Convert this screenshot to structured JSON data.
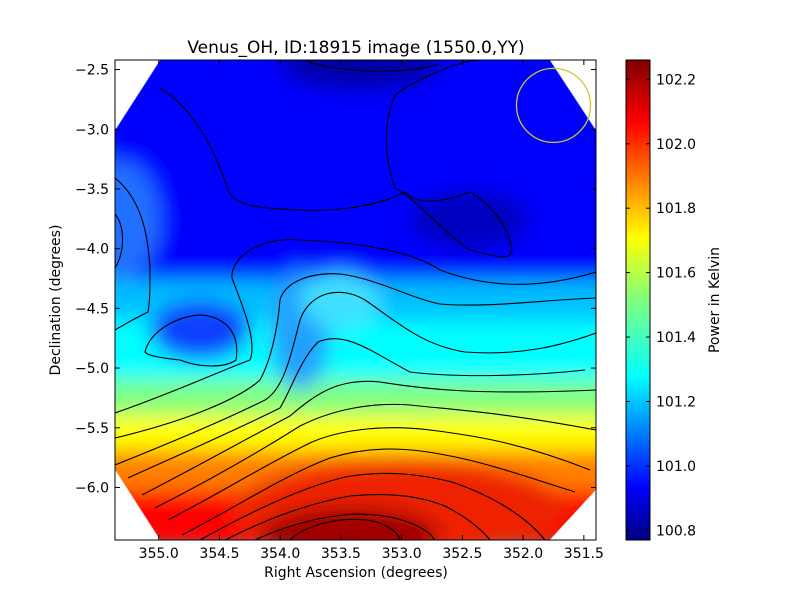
{
  "chart_data": {
    "type": "heatmap",
    "title": "Venus_OH, ID:18915 image (1550.0,YY)",
    "xlabel": "Right Ascension (degrees)",
    "ylabel": "Declination (degrees)",
    "colorbar_label": "Power in Kelvin",
    "xlim": [
      355.36,
      351.4
    ],
    "ylim": [
      -6.44,
      -2.42
    ],
    "x_ticks": [
      355.0,
      354.5,
      354.0,
      353.5,
      353.0,
      352.5,
      352.0,
      351.5
    ],
    "x_tick_labels": [
      "355.0",
      "354.5",
      "354.0",
      "353.5",
      "353.0",
      "352.5",
      "352.0",
      "351.5"
    ],
    "y_ticks": [
      -2.5,
      -3.0,
      -3.5,
      -4.0,
      -4.5,
      -5.0,
      -5.5,
      -6.0
    ],
    "y_tick_labels": [
      "−2.5",
      "−3.0",
      "−3.5",
      "−4.0",
      "−4.5",
      "−5.0",
      "−5.5",
      "−6.0"
    ],
    "colorbar_range": [
      100.77,
      102.26
    ],
    "colorbar_ticks": [
      100.8,
      101.0,
      101.2,
      101.4,
      101.6,
      101.8,
      102.0,
      102.2
    ],
    "colorbar_tick_labels": [
      "100.8",
      "101.0",
      "101.2",
      "101.4",
      "101.6",
      "101.8",
      "102.0",
      "102.2"
    ],
    "colormap": "jet",
    "contour_color": "#000000",
    "grid": false,
    "min_region": {
      "ra": 352.45,
      "dec": -3.83,
      "power": 100.85
    },
    "max_region": {
      "ra": 353.55,
      "dec": -6.36,
      "power": 102.26
    },
    "marker_circle": {
      "ra": 351.75,
      "dec": -2.8,
      "radius_deg": 0.31,
      "color": "#c8c832"
    }
  }
}
